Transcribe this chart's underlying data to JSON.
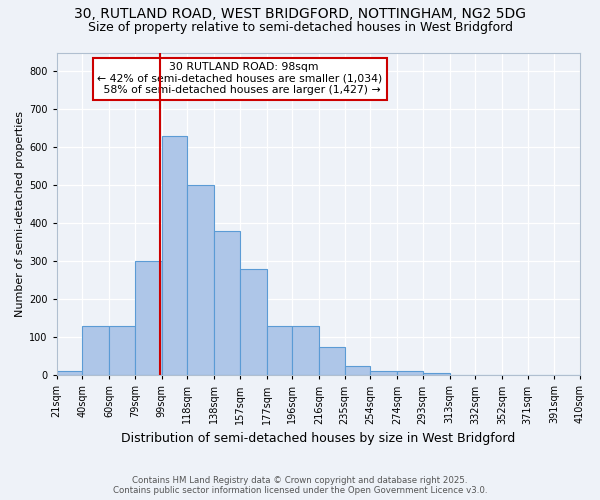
{
  "title_line1": "30, RUTLAND ROAD, WEST BRIDGFORD, NOTTINGHAM, NG2 5DG",
  "title_line2": "Size of property relative to semi-detached houses in West Bridgford",
  "xlabel": "Distribution of semi-detached houses by size in West Bridgford",
  "ylabel": "Number of semi-detached properties",
  "footer_line1": "Contains HM Land Registry data © Crown copyright and database right 2025.",
  "footer_line2": "Contains public sector information licensed under the Open Government Licence v3.0.",
  "bin_edges": [
    21,
    40,
    60,
    79,
    99,
    118,
    138,
    157,
    177,
    196,
    216,
    235,
    254,
    274,
    293,
    313,
    332,
    352,
    371,
    391,
    410
  ],
  "bar_heights": [
    10,
    130,
    130,
    300,
    630,
    500,
    380,
    280,
    130,
    130,
    75,
    25,
    10,
    10,
    5,
    2,
    1,
    1,
    1,
    0
  ],
  "bar_color": "#aec6e8",
  "bar_edge_color": "#5b9bd5",
  "property_size": 98,
  "property_label": "30 RUTLAND ROAD: 98sqm",
  "pct_smaller": 42,
  "pct_larger": 58,
  "count_smaller": 1034,
  "count_larger": 1427,
  "vline_color": "#cc0000",
  "annotation_box_color": "#cc0000",
  "ylim": [
    0,
    850
  ],
  "yticks": [
    0,
    100,
    200,
    300,
    400,
    500,
    600,
    700,
    800
  ],
  "background_color": "#eef2f8",
  "tick_label_size": 7,
  "title1_fontsize": 10,
  "title2_fontsize": 9,
  "xlabel_fontsize": 9,
  "ylabel_fontsize": 8
}
